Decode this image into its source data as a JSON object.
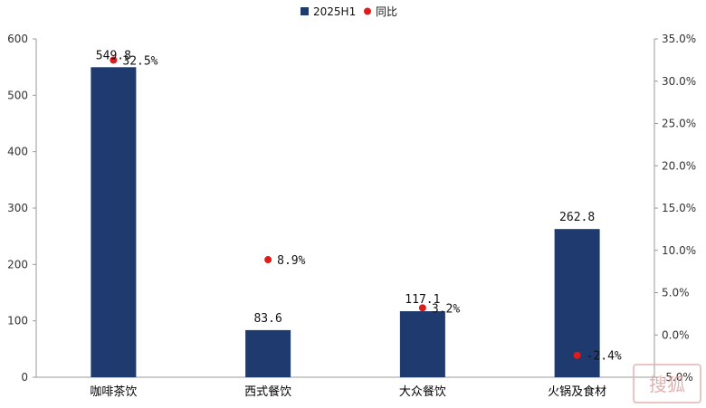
{
  "chart_data": {
    "type": "bar",
    "categories": [
      "咖啡茶饮",
      "西式餐饮",
      "大众餐饮",
      "火锅及食材"
    ],
    "series": [
      {
        "name": "2025H1",
        "type": "bar",
        "axis": "left",
        "values": [
          549.8,
          83.6,
          117.1,
          262.8
        ],
        "labels": [
          "549.8",
          "83.6",
          "117.1",
          "262.8"
        ]
      },
      {
        "name": "同比",
        "type": "scatter",
        "axis": "right",
        "values": [
          32.5,
          8.9,
          3.2,
          -2.4
        ],
        "labels": [
          "32.5%",
          "8.9%",
          "3.2%",
          "-2.4%"
        ]
      }
    ],
    "y_left": {
      "ylim": [
        0,
        600
      ],
      "ticks": [
        "0",
        "100",
        "200",
        "300",
        "400",
        "500",
        "600"
      ]
    },
    "y_right": {
      "ylim": [
        -5,
        35
      ],
      "ticks": [
        "-5.0%",
        "0.0%",
        "5.0%",
        "10.0%",
        "15.0%",
        "20.0%",
        "25.0%",
        "30.0%",
        "35.0%"
      ]
    },
    "legend": "top-center",
    "grid": false,
    "colors": {
      "bar": "#1f3a6e",
      "dot": "#e01b1b"
    }
  },
  "watermark": {
    "text": "搜狐"
  }
}
